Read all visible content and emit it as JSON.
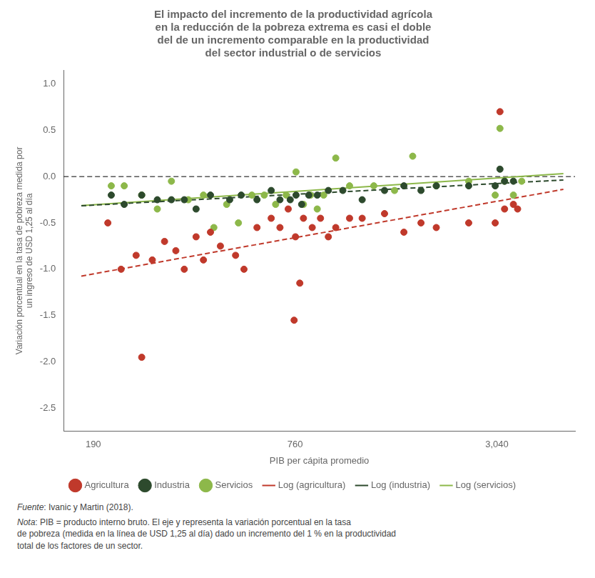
{
  "chart_data": {
    "type": "scatter",
    "title": "El impacto del incremento de la productividad agrícola\nen la reducción de la pobreza extrema es casi el doble\ndel de un incremento comparable en la productividad\ndel sector industrial o de servicios",
    "xlabel": "PIB per cápita promedio",
    "ylabel": "Variación porcentual en la tasa de pobreza medida por\nun ingreso de USD 1,25 al día",
    "notes": [
      "Fuente: Ivanic y Martin (2018).",
      "Nota: PIB = producto interno bruto. El eje y representa la variación porcentual en la tasa\nde pobreza (medida en la línea de USD 1,25 al día) dado un incremento del 1 % en la productividad\ntotal de los factores de un sector."
    ],
    "log": "x",
    "xlim": [
      155,
      5200
    ],
    "xticks": [
      190,
      760,
      {
        "value": 3040,
        "label": "3,040"
      }
    ],
    "ylim": [
      -2.75,
      1.15
    ],
    "yticks": [
      -2.5,
      {
        "value": -2.0,
        "label": "-2.0"
      },
      -1.5,
      {
        "value": -1.0,
        "label": "-1.0"
      },
      -0.5,
      {
        "value": 0.0,
        "label": "0.0"
      },
      0.5,
      {
        "value": 1.0,
        "label": "1.0"
      }
    ],
    "grid": false,
    "legend": "bottom",
    "hlines": [
      {
        "y": 0,
        "color": "#000000",
        "line_style": "dashed"
      }
    ],
    "series": [
      {
        "name": "Agricultura",
        "type": "scatter",
        "marker": "circle",
        "color": "#c0392b",
        "x": [
          210,
          230,
          255,
          265,
          285,
          310,
          335,
          355,
          385,
          405,
          425,
          455,
          505,
          535,
          585,
          645,
          685,
          725,
          755,
          762,
          785,
          805,
          855,
          905,
          955,
          1005,
          1105,
          1205,
          1405,
          1605,
          1805,
          2005,
          2505,
          3005,
          3105,
          3205,
          3405,
          3505
        ],
        "values": [
          -0.5,
          -1.0,
          -0.85,
          -1.95,
          -0.9,
          -0.7,
          -0.8,
          -1.0,
          -0.65,
          -0.9,
          -0.6,
          -0.75,
          -0.85,
          -1.0,
          -0.55,
          -0.45,
          -0.55,
          -0.35,
          -1.55,
          -0.65,
          -1.15,
          -0.45,
          -0.55,
          -0.45,
          -0.65,
          -0.55,
          -0.45,
          -0.45,
          -0.4,
          -0.6,
          -0.5,
          -0.55,
          -0.5,
          -0.5,
          0.7,
          -0.35,
          -0.3,
          -0.35
        ]
      },
      {
        "name": "Industria",
        "type": "scatter",
        "marker": "circle",
        "color": "#2d4a2d",
        "x": [
          215,
          235,
          265,
          295,
          325,
          355,
          385,
          425,
          485,
          525,
          585,
          645,
          685,
          735,
          765,
          795,
          835,
          885,
          955,
          1055,
          1205,
          1405,
          1605,
          1805,
          2005,
          2505,
          3005,
          3105,
          3205,
          3405
        ],
        "values": [
          -0.2,
          -0.3,
          -0.2,
          -0.25,
          -0.25,
          -0.25,
          -0.35,
          -0.2,
          -0.25,
          -0.2,
          -0.25,
          -0.15,
          -0.25,
          -0.25,
          -0.2,
          -0.3,
          -0.2,
          -0.2,
          -0.15,
          -0.15,
          -0.25,
          -0.15,
          -0.1,
          -0.15,
          -0.1,
          -0.1,
          -0.1,
          0.08,
          -0.05,
          -0.05
        ]
      },
      {
        "name": "Servicios",
        "type": "scatter",
        "marker": "circle",
        "color": "#8db84a",
        "x": [
          215,
          235,
          265,
          295,
          325,
          365,
          405,
          435,
          475,
          515,
          565,
          615,
          665,
          715,
          765,
          805,
          845,
          885,
          925,
          1005,
          1105,
          1305,
          1505,
          1705,
          2005,
          2505,
          3005,
          3105,
          3205,
          3405,
          3605
        ],
        "values": [
          -0.1,
          -0.1,
          -0.2,
          -0.35,
          -0.05,
          -0.25,
          -0.2,
          -0.55,
          -0.3,
          -0.5,
          -0.2,
          -0.2,
          -0.3,
          -0.2,
          0.05,
          -0.3,
          -0.2,
          -0.35,
          -0.2,
          0.2,
          -0.1,
          -0.1,
          -0.15,
          0.22,
          -0.1,
          -0.05,
          -0.2,
          0.52,
          -0.05,
          -0.2,
          -0.05
        ]
      },
      {
        "name": "Log (agricultura)",
        "type": "line",
        "line_style": "dashed",
        "color": "#c0392b",
        "x": [
          175,
          4800
        ],
        "values": [
          -1.07374,
          -0.13801
        ]
      },
      {
        "name": "Log (industria)",
        "type": "line",
        "line_style": "dashed",
        "color": "#2d4a2d",
        "x": [
          175,
          4800
        ],
        "values": [
          -0.31517,
          -0.03667
        ]
      },
      {
        "name": "Log (servicios)",
        "type": "line",
        "line_style": "solid",
        "color": "#8db84a",
        "x": [
          175,
          4800
        ],
        "values": [
          -0.31353,
          0.03234
        ]
      }
    ]
  }
}
